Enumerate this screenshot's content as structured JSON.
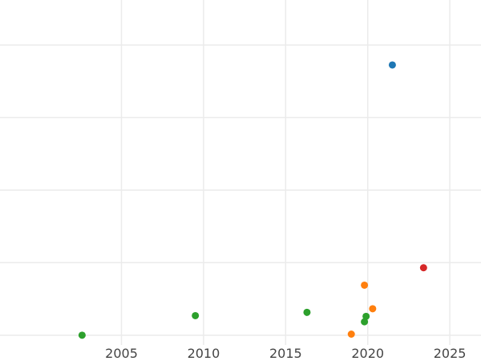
{
  "chart_data": {
    "type": "scatter",
    "title": "",
    "xlabel": "",
    "ylabel": "",
    "xlim": [
      1997.6,
      2026.9
    ],
    "ylim": [
      -1.8,
      92.4
    ],
    "x_ticks": [
      2005,
      2010,
      2015,
      2020,
      2025
    ],
    "y_gridlines": [
      0,
      20,
      40,
      60,
      80
    ],
    "grid": true,
    "legend": "none",
    "series": [
      {
        "color": "#2ca02c",
        "points": [
          {
            "x": 2002.6,
            "y": 0.0
          },
          {
            "x": 2009.5,
            "y": 5.4
          },
          {
            "x": 2016.3,
            "y": 6.3
          },
          {
            "x": 2019.8,
            "y": 3.7
          },
          {
            "x": 2019.9,
            "y": 5.2
          }
        ]
      },
      {
        "color": "#ff7f0e",
        "points": [
          {
            "x": 2019.0,
            "y": 0.3
          },
          {
            "x": 2019.8,
            "y": 13.8
          },
          {
            "x": 2020.3,
            "y": 7.3
          }
        ]
      },
      {
        "color": "#1f77b4",
        "points": [
          {
            "x": 2021.5,
            "y": 74.5
          }
        ]
      },
      {
        "color": "#d62728",
        "points": [
          {
            "x": 2023.4,
            "y": 18.6
          }
        ]
      }
    ]
  },
  "colors": {
    "grid": "#ebebeb",
    "tick_text": "#444444"
  }
}
